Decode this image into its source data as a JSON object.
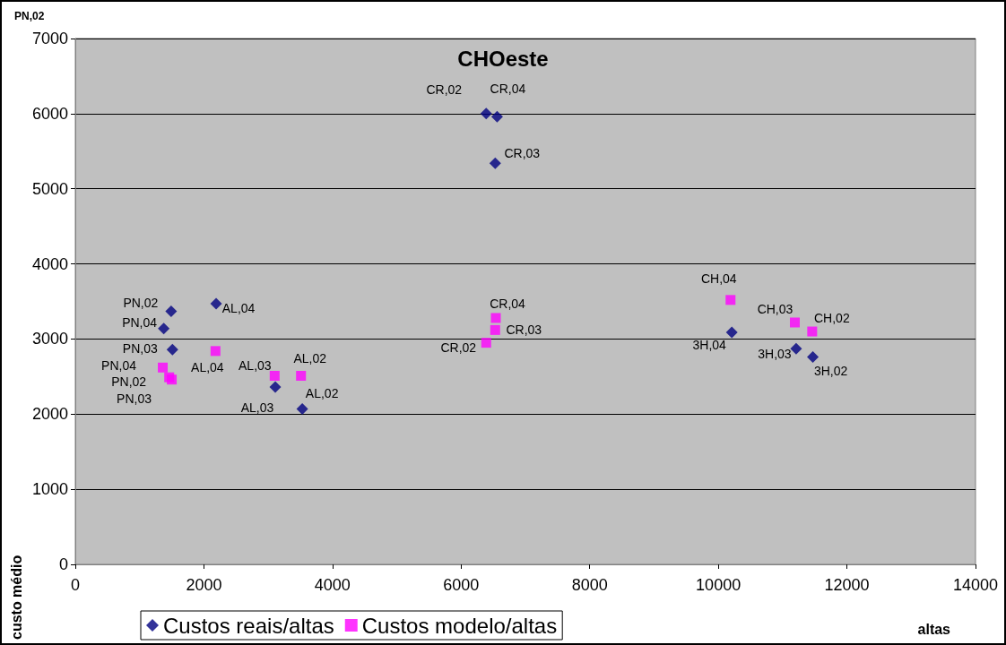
{
  "chart_data": {
    "type": "scatter",
    "title": "CHOeste",
    "xlabel": "altas",
    "ylabel": "custo médio",
    "annotations": [
      "PN,02",
      {
        "text": "PN,02",
        "x": 1490,
        "y": 3370
      },
      {
        "text": "PN,04",
        "x": 1375,
        "y": 3140
      },
      {
        "text": "PN,03",
        "x": 1510,
        "y": 2860
      },
      {
        "text": "AL,04",
        "x": 2190,
        "y": 3470
      },
      {
        "text": "AL,03",
        "x": 3110,
        "y": 2360
      },
      {
        "text": "AL,02",
        "x": 3530,
        "y": 2070
      },
      {
        "text": "CR,02",
        "x": 6390,
        "y": 6000
      },
      {
        "text": "CR,04",
        "x": 6560,
        "y": 5960
      },
      {
        "text": "CR,03",
        "x": 6530,
        "y": 5340
      },
      {
        "text": "3H,04",
        "x": 10210,
        "y": 3090
      },
      {
        "text": "3H,03",
        "x": 11210,
        "y": 2870
      },
      {
        "text": "3H,02",
        "x": 11470,
        "y": 2760
      },
      {
        "text": "PN,04",
        "x": 1360,
        "y": 2620
      },
      {
        "text": "PN,02",
        "x": 1460,
        "y": 2490
      },
      {
        "text": "PN,03",
        "x": 1500,
        "y": 2460
      },
      {
        "text": "AL,04",
        "x": 2180,
        "y": 2840
      },
      {
        "text": "AL,03",
        "x": 3100,
        "y": 2510
      },
      {
        "text": "AL,02",
        "x": 3510,
        "y": 2510
      },
      {
        "text": "CR,04",
        "x": 6540,
        "y": 3280
      },
      {
        "text": "CR,03",
        "x": 6530,
        "y": 3120
      },
      {
        "text": "CR,02",
        "x": 6390,
        "y": 2950
      },
      {
        "text": "CH,04",
        "x": 10190,
        "y": 3520
      },
      {
        "text": "CH,03",
        "x": 11190,
        "y": 3220
      },
      {
        "text": "CH,02",
        "x": 11460,
        "y": 3100
      }
    ],
    "xlim": [
      0,
      14000
    ],
    "xticks": [
      0,
      2000,
      4000,
      6000,
      8000,
      10000,
      12000,
      14000
    ],
    "ylim": [
      0,
      7000
    ],
    "yticks": [
      0,
      1000,
      2000,
      3000,
      4000,
      5000,
      6000,
      7000
    ],
    "grid": "y",
    "legend": "bottom",
    "series": [
      {
        "name": "Custos reais/altas",
        "color": "#000080",
        "marker": "diamond",
        "x": [
          1490,
          1375,
          1510,
          2190,
          3110,
          3530,
          6390,
          6560,
          6530,
          10210,
          11210,
          11470
        ],
        "values": [
          3370,
          3140,
          2860,
          3470,
          2360,
          2070,
          6000,
          5960,
          5340,
          3090,
          2870,
          2760
        ]
      },
      {
        "name": "Custos modelo/altas",
        "color": "#ff00ff",
        "marker": "square",
        "x": [
          1360,
          1460,
          1500,
          2180,
          3100,
          3510,
          6540,
          6530,
          6390,
          10190,
          11190,
          11460
        ],
        "values": [
          2620,
          2490,
          2460,
          2840,
          2510,
          2510,
          3280,
          3120,
          2950,
          3520,
          3220,
          3100
        ]
      }
    ]
  }
}
